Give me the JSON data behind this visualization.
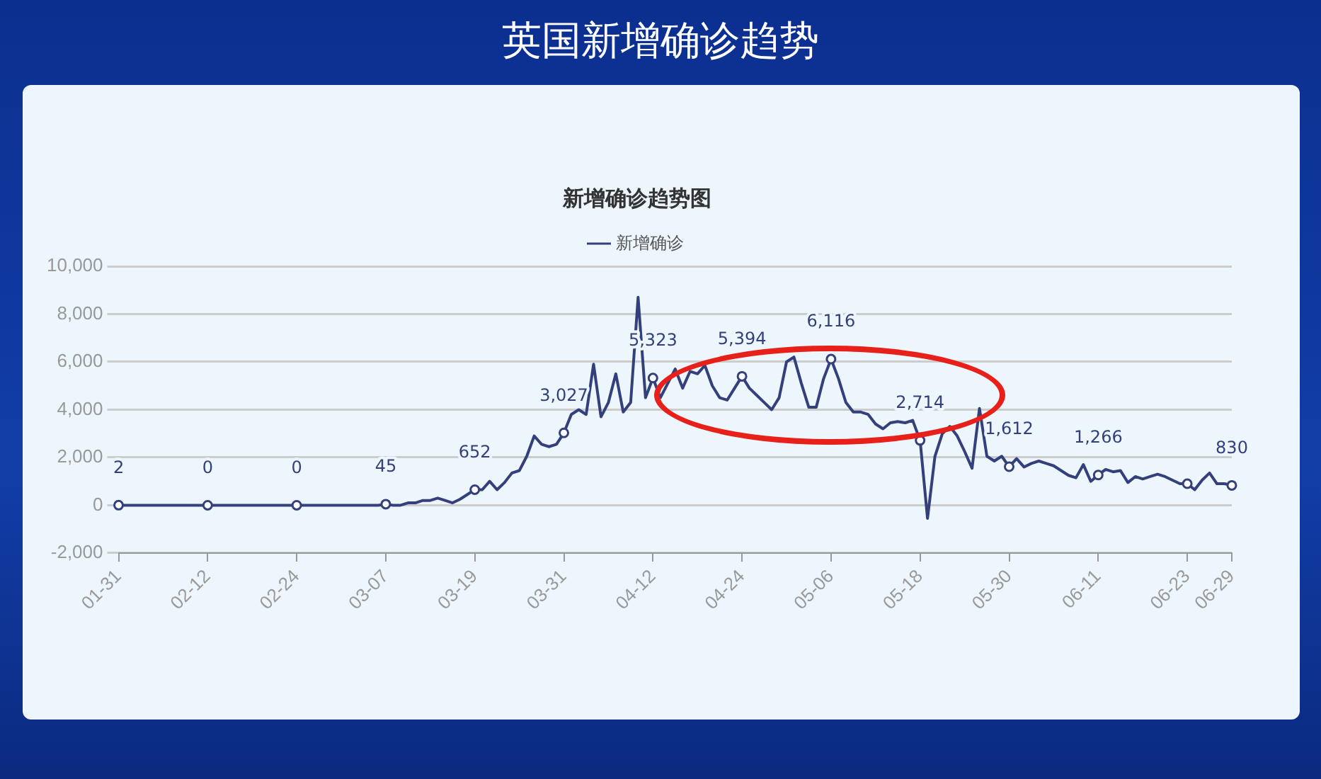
{
  "chart_data": {
    "type": "line",
    "title": "英国新增确诊趋势",
    "subtitle": "新增确诊趋势图",
    "categories": [
      "01-31",
      null,
      null,
      null,
      null,
      null,
      null,
      null,
      null,
      null,
      null,
      null,
      "02-12",
      null,
      null,
      null,
      null,
      null,
      null,
      null,
      null,
      null,
      null,
      null,
      "02-24",
      null,
      null,
      null,
      null,
      null,
      null,
      null,
      null,
      null,
      null,
      null,
      "03-07",
      null,
      null,
      null,
      null,
      null,
      null,
      null,
      null,
      null,
      null,
      null,
      "03-19",
      null,
      null,
      null,
      null,
      null,
      null,
      null,
      null,
      null,
      null,
      null,
      "03-31",
      null,
      null,
      null,
      null,
      null,
      null,
      null,
      null,
      null,
      null,
      null,
      "04-12",
      null,
      null,
      null,
      null,
      null,
      null,
      null,
      null,
      null,
      null,
      null,
      "04-24",
      null,
      null,
      null,
      null,
      null,
      null,
      null,
      null,
      null,
      null,
      null,
      "05-06",
      null,
      null,
      null,
      null,
      null,
      null,
      null,
      null,
      null,
      null,
      null,
      "05-18",
      null,
      null,
      null,
      null,
      null,
      null,
      null,
      null,
      null,
      null,
      null,
      "05-30",
      null,
      null,
      null,
      null,
      null,
      null,
      null,
      null,
      null,
      null,
      null,
      "06-11",
      null,
      null,
      null,
      null,
      null,
      null,
      null,
      null,
      null,
      null,
      null,
      "06-23",
      null,
      null,
      null,
      null,
      null,
      "06-29"
    ],
    "series": [
      {
        "name": "新增确诊",
        "color": "#34407c",
        "values": [
          2,
          0,
          0,
          0,
          0,
          0,
          0,
          0,
          0,
          0,
          0,
          0,
          0,
          0,
          0,
          0,
          0,
          0,
          0,
          0,
          0,
          0,
          0,
          0,
          0,
          0,
          0,
          0,
          0,
          0,
          0,
          0,
          0,
          0,
          0,
          0,
          45,
          0,
          0,
          100,
          100,
          200,
          200,
          300,
          200,
          100,
          250,
          450,
          652,
          650,
          1000,
          650,
          950,
          1350,
          1450,
          2050,
          2900,
          2550,
          2450,
          2550,
          3027,
          3800,
          4000,
          3800,
          5900,
          3700,
          4300,
          5500,
          3900,
          4300,
          8700,
          4500,
          5323,
          4500,
          5100,
          5700,
          4900,
          5600,
          5500,
          5850,
          5000,
          4500,
          4400,
          4900,
          5394,
          4900,
          4600,
          4300,
          4000,
          4500,
          6000,
          6200,
          5100,
          4100,
          4100,
          5300,
          6116,
          5300,
          4300,
          3900,
          3900,
          3800,
          3400,
          3200,
          3450,
          3500,
          3450,
          3550,
          2714,
          -550,
          2050,
          3000,
          3300,
          2900,
          2250,
          1550,
          4050,
          2050,
          1850,
          2050,
          1612,
          1950,
          1600,
          1750,
          1850,
          1750,
          1650,
          1450,
          1250,
          1150,
          1700,
          1000,
          1266,
          1500,
          1400,
          1450,
          950,
          1200,
          1100,
          1200,
          1300,
          1200,
          1050,
          900,
          900,
          650,
          1050,
          1350,
          900,
          900,
          830
        ],
        "value_labels": [
          "2",
          null,
          null,
          null,
          null,
          null,
          null,
          null,
          null,
          null,
          null,
          null,
          "0",
          null,
          null,
          null,
          null,
          null,
          null,
          null,
          null,
          null,
          null,
          null,
          "0",
          null,
          null,
          null,
          null,
          null,
          null,
          null,
          null,
          null,
          null,
          null,
          "45",
          null,
          null,
          null,
          null,
          null,
          null,
          null,
          null,
          null,
          null,
          null,
          "652",
          null,
          null,
          null,
          null,
          null,
          null,
          null,
          null,
          null,
          null,
          null,
          "3,027",
          null,
          null,
          null,
          null,
          null,
          null,
          null,
          null,
          null,
          null,
          null,
          "5,323",
          null,
          null,
          null,
          null,
          null,
          null,
          null,
          null,
          null,
          null,
          null,
          "5,394",
          null,
          null,
          null,
          null,
          null,
          null,
          null,
          null,
          null,
          null,
          null,
          "6,116",
          null,
          null,
          null,
          null,
          null,
          null,
          null,
          null,
          null,
          null,
          null,
          "2,714",
          null,
          null,
          null,
          null,
          null,
          null,
          null,
          null,
          null,
          null,
          null,
          "1,612",
          null,
          null,
          null,
          null,
          null,
          null,
          null,
          null,
          null,
          null,
          null,
          "1,266",
          null,
          null,
          null,
          null,
          null,
          null,
          null,
          null,
          null,
          null,
          null,
          null,
          null,
          null,
          null,
          null,
          null,
          "830"
        ]
      }
    ],
    "ylim": [
      -2000,
      10000
    ],
    "yticks": [
      {
        "value": -2000,
        "label": "-2,000"
      },
      0,
      {
        "value": 2000,
        "label": "2,000"
      },
      {
        "value": 4000,
        "label": "4,000"
      },
      {
        "value": 6000,
        "label": "6,000"
      },
      {
        "value": 8000,
        "label": "8,000"
      },
      {
        "value": 10000,
        "label": "10,000"
      }
    ],
    "grid": "y",
    "legend": "top",
    "line_style": "solid"
  }
}
